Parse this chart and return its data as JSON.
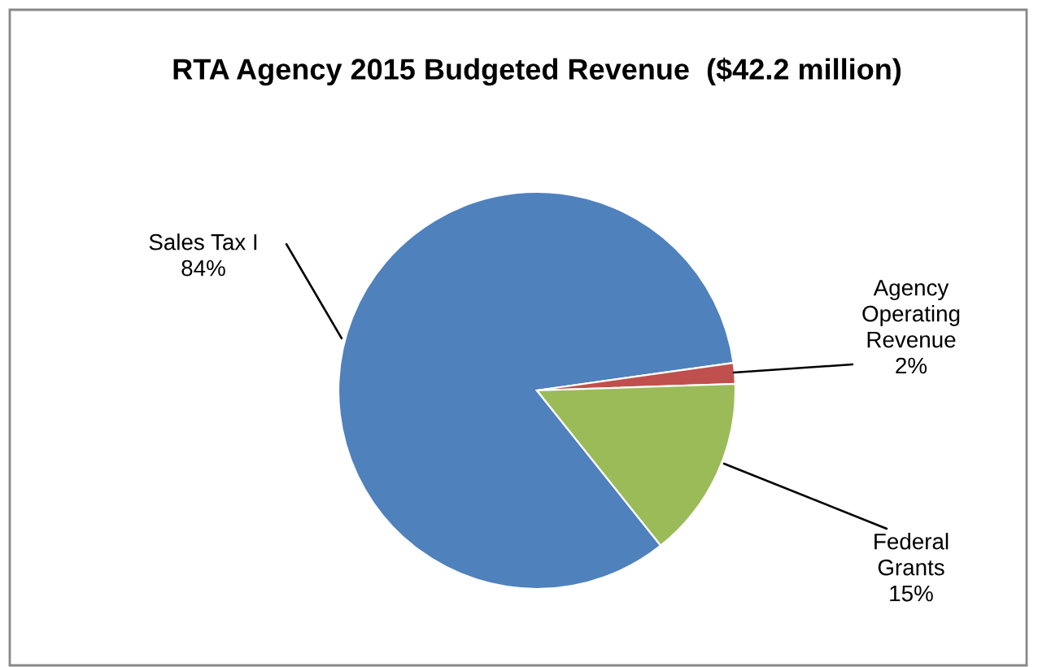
{
  "chart_data": {
    "type": "pie",
    "title": "RTA Agency 2015 Budgeted Revenue  ($42.2 million)",
    "categories": [
      "Sales Tax I",
      "Agency Operating Revenue",
      "Federal Grants"
    ],
    "values": [
      83.5,
      1.7,
      14.8
    ],
    "value_labels": [
      "84%",
      "2%",
      "15%"
    ],
    "colors": [
      "#4f81bd",
      "#c0504d",
      "#9bbb59"
    ],
    "legend": false
  }
}
